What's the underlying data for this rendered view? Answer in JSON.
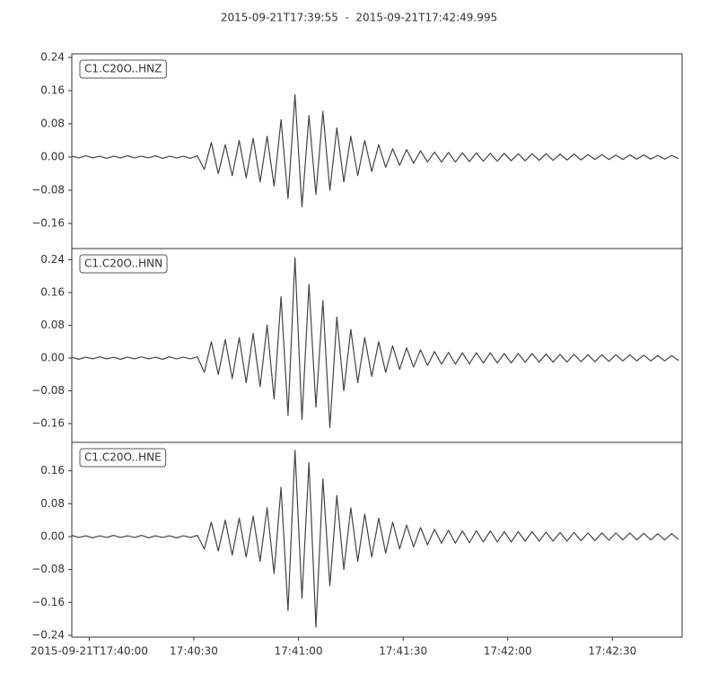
{
  "chart_data": {
    "type": "line",
    "title": "2015-09-21T17:39:55  -  2015-09-21T17:42:49.995",
    "xlim": [
      0,
      174.995
    ],
    "xticks": [
      {
        "value": 5,
        "label": "2015-09-21T17:40:00"
      },
      {
        "value": 35,
        "label": "17:40:30"
      },
      {
        "value": 65,
        "label": "17:41:00"
      },
      {
        "value": 95,
        "label": "17:41:30"
      },
      {
        "value": 125,
        "label": "17:42:00"
      },
      {
        "value": 155,
        "label": "17:42:30"
      }
    ],
    "x": [
      0,
      2,
      4,
      6,
      8,
      10,
      12,
      14,
      16,
      18,
      20,
      22,
      24,
      26,
      28,
      30,
      32,
      34,
      36,
      38,
      40,
      42,
      44,
      46,
      48,
      50,
      52,
      54,
      56,
      58,
      60,
      62,
      64,
      66,
      68,
      70,
      72,
      74,
      76,
      78,
      80,
      82,
      84,
      86,
      88,
      90,
      92,
      94,
      96,
      98,
      100,
      102,
      104,
      106,
      108,
      110,
      112,
      114,
      116,
      118,
      120,
      122,
      124,
      126,
      128,
      130,
      132,
      134,
      136,
      138,
      140,
      142,
      144,
      146,
      148,
      150,
      152,
      154,
      156,
      158,
      160,
      162,
      164,
      166,
      168,
      170,
      172,
      174
    ],
    "series": [
      {
        "name": "C1.C20O..HNZ",
        "color": "#444444",
        "ylim": [
          -0.2205,
          0.2486
        ],
        "yticks": [
          {
            "value": 0.24,
            "label": "0.24"
          },
          {
            "value": 0.16,
            "label": "0.16"
          },
          {
            "value": 0.08,
            "label": "0.08"
          },
          {
            "value": 0,
            "label": "0.00"
          },
          {
            "value": -0.08,
            "label": "−0.08"
          },
          {
            "value": -0.16,
            "label": "−0.16"
          }
        ],
        "values": [
          0.002,
          -0.002,
          0.003,
          -0.002,
          0.002,
          -0.003,
          0.002,
          -0.002,
          0.003,
          -0.002,
          0.002,
          -0.002,
          0.003,
          -0.003,
          0.002,
          -0.002,
          0.002,
          -0.003,
          0.003,
          -0.03,
          0.035,
          -0.04,
          0.03,
          -0.045,
          0.04,
          -0.05,
          0.045,
          -0.06,
          0.05,
          -0.07,
          0.09,
          -0.1,
          0.15,
          -0.12,
          0.1,
          -0.09,
          0.11,
          -0.08,
          0.07,
          -0.06,
          0.05,
          -0.045,
          0.04,
          -0.035,
          0.03,
          -0.025,
          0.02,
          -0.02,
          0.018,
          -0.015,
          0.015,
          -0.012,
          0.012,
          -0.012,
          0.011,
          -0.012,
          0.01,
          -0.011,
          0.01,
          -0.01,
          0.009,
          -0.01,
          0.009,
          -0.009,
          0.008,
          -0.009,
          0.008,
          -0.008,
          0.008,
          -0.008,
          0.007,
          -0.007,
          0.007,
          -0.007,
          0.006,
          -0.006,
          0.006,
          -0.006,
          0.005,
          -0.006,
          0.005,
          -0.005,
          0.005,
          -0.005,
          0.004,
          -0.005,
          0.004,
          -0.004
        ]
      },
      {
        "name": "C1.C20O..HNN",
        "color": "#444444",
        "ylim": [
          -0.206,
          0.2674
        ],
        "yticks": [
          {
            "value": 0.24,
            "label": "0.24"
          },
          {
            "value": 0.16,
            "label": "0.16"
          },
          {
            "value": 0.08,
            "label": "0.08"
          },
          {
            "value": 0,
            "label": "0.00"
          },
          {
            "value": -0.08,
            "label": "−0.08"
          },
          {
            "value": -0.16,
            "label": "−0.16"
          }
        ],
        "values": [
          0.002,
          -0.003,
          0.002,
          -0.002,
          0.003,
          -0.002,
          0.002,
          -0.003,
          0.002,
          -0.002,
          0.003,
          -0.002,
          0.002,
          -0.003,
          0.003,
          -0.002,
          0.002,
          -0.002,
          0.003,
          -0.035,
          0.04,
          -0.04,
          0.045,
          -0.05,
          0.05,
          -0.06,
          0.06,
          -0.07,
          0.08,
          -0.1,
          0.15,
          -0.14,
          0.245,
          -0.15,
          0.18,
          -0.12,
          0.14,
          -0.17,
          0.1,
          -0.08,
          0.07,
          -0.06,
          0.05,
          -0.045,
          0.04,
          -0.035,
          0.03,
          -0.028,
          0.025,
          -0.022,
          0.02,
          -0.018,
          0.016,
          -0.015,
          0.014,
          -0.015,
          0.013,
          -0.014,
          0.013,
          -0.012,
          0.013,
          -0.012,
          0.011,
          -0.012,
          0.011,
          -0.01,
          0.011,
          -0.01,
          0.01,
          -0.01,
          0.009,
          -0.01,
          0.009,
          -0.009,
          0.008,
          -0.009,
          0.008,
          -0.008,
          0.008,
          -0.007,
          0.008,
          -0.007,
          0.007,
          -0.007,
          0.006,
          -0.007,
          0.006,
          -0.006
        ]
      },
      {
        "name": "C1.C20O..HNE",
        "color": "#444444",
        "ylim": [
          -0.2443,
          0.229
        ],
        "yticks": [
          {
            "value": 0.16,
            "label": "0.16"
          },
          {
            "value": 0.08,
            "label": "0.08"
          },
          {
            "value": 0,
            "label": "0.00"
          },
          {
            "value": -0.08,
            "label": "−0.08"
          },
          {
            "value": -0.16,
            "label": "−0.16"
          },
          {
            "value": -0.24,
            "label": "−0.24"
          }
        ],
        "values": [
          0.003,
          -0.002,
          0.002,
          -0.003,
          0.002,
          -0.002,
          0.003,
          -0.002,
          0.002,
          -0.002,
          0.003,
          -0.003,
          0.002,
          -0.002,
          0.002,
          -0.003,
          0.002,
          -0.002,
          0.003,
          -0.03,
          0.035,
          -0.035,
          0.04,
          -0.045,
          0.045,
          -0.05,
          0.05,
          -0.06,
          0.07,
          -0.09,
          0.12,
          -0.18,
          0.21,
          -0.15,
          0.18,
          -0.22,
          0.14,
          -0.12,
          0.1,
          -0.08,
          0.07,
          -0.06,
          0.055,
          -0.05,
          0.045,
          -0.04,
          0.035,
          -0.03,
          0.028,
          -0.025,
          0.022,
          -0.02,
          0.018,
          -0.016,
          0.015,
          -0.016,
          0.014,
          -0.015,
          0.014,
          -0.013,
          0.014,
          -0.013,
          0.012,
          -0.013,
          0.012,
          -0.011,
          0.012,
          -0.011,
          0.011,
          -0.011,
          0.01,
          -0.011,
          0.01,
          -0.01,
          0.009,
          -0.01,
          0.009,
          -0.009,
          0.009,
          -0.008,
          0.009,
          -0.008,
          0.008,
          -0.008,
          0.007,
          -0.008,
          0.007,
          -0.007
        ]
      }
    ]
  }
}
